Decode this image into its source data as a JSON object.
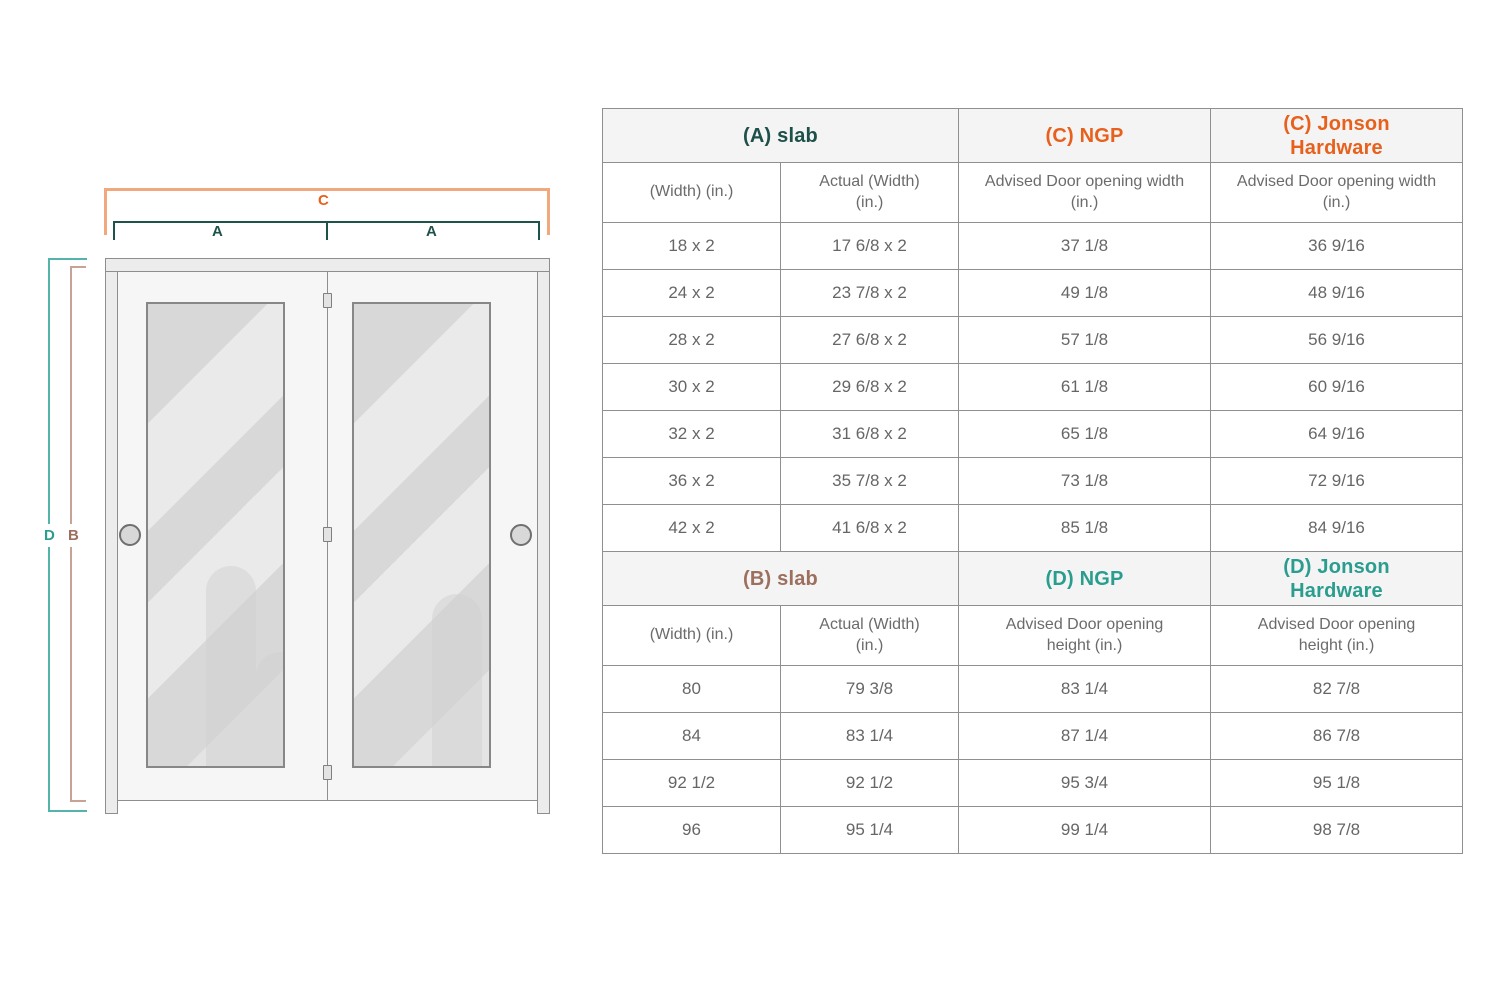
{
  "diagram": {
    "labels": {
      "top_outer": "C",
      "top_left": "A",
      "top_right": "A",
      "side_outer": "D",
      "side_inner": "B"
    },
    "colors": {
      "orange": "#E8611C",
      "orange_line": "#F0A87C",
      "dark_teal": "#1C5049",
      "teal": "#2A9D8F",
      "teal_line": "#54B4AA",
      "brown": "#9C6F5E",
      "brown_line": "#C8A395"
    }
  },
  "table": {
    "sections": [
      {
        "header": [
          {
            "label": "(A) slab",
            "colspan": 2,
            "accent": "dark-teal"
          },
          {
            "label": "(C) NGP",
            "colspan": 1,
            "accent": "orange"
          },
          {
            "label": "(C) Jonson Hardware",
            "colspan": 1,
            "accent": "orange"
          }
        ],
        "subheader": [
          "(Width) (in.)",
          "Actual (Width) (in.)",
          "Advised Door opening width (in.)",
          "Advised Door opening width (in.)"
        ],
        "rows": [
          [
            "18 x 2",
            "17 6/8 x 2",
            "37 1/8",
            "36 9/16"
          ],
          [
            "24 x 2",
            "23 7/8 x 2",
            "49 1/8",
            "48 9/16"
          ],
          [
            "28 x 2",
            "27 6/8 x 2",
            "57 1/8",
            "56 9/16"
          ],
          [
            "30 x 2",
            "29 6/8 x 2",
            "61 1/8",
            "60 9/16"
          ],
          [
            "32 x 2",
            "31 6/8 x 2",
            "65 1/8",
            "64 9/16"
          ],
          [
            "36 x 2",
            "35 7/8 x 2",
            "73 1/8",
            "72 9/16"
          ],
          [
            "42 x 2",
            "41 6/8 x 2",
            "85 1/8",
            "84 9/16"
          ]
        ]
      },
      {
        "header": [
          {
            "label": "(B) slab",
            "colspan": 2,
            "accent": "brown"
          },
          {
            "label": "(D) NGP",
            "colspan": 1,
            "accent": "teal"
          },
          {
            "label": "(D) Jonson Hardware",
            "colspan": 1,
            "accent": "teal"
          }
        ],
        "subheader": [
          "(Width) (in.)",
          "Actual (Width) (in.)",
          "Advised Door opening height (in.)",
          "Advised Door opening height (in.)"
        ],
        "rows": [
          [
            "80",
            "79 3/8",
            "83 1/4",
            "82 7/8"
          ],
          [
            "84",
            "83 1/4",
            "87 1/4",
            "86 7/8"
          ],
          [
            "92 1/2",
            "92 1/2",
            "95 3/4",
            "95 1/8"
          ],
          [
            "96",
            "95 1/4",
            "99 1/4",
            "98 7/8"
          ]
        ]
      }
    ]
  }
}
